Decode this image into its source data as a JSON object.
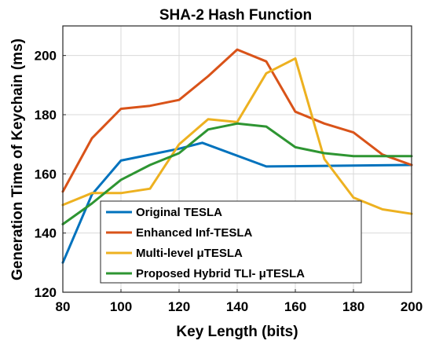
{
  "chart_data": {
    "type": "line",
    "title": "SHA-2 Hash Function",
    "xlabel": "Key Length (bits)",
    "ylabel": "Generation Time of Keychain (ms)",
    "xlim": [
      80,
      200
    ],
    "ylim": [
      120,
      210
    ],
    "xticks": [
      80,
      100,
      120,
      140,
      160,
      180,
      200
    ],
    "yticks": [
      120,
      140,
      160,
      180,
      200
    ],
    "grid": true,
    "legend_position": "bottom-left",
    "series": [
      {
        "name": "Original TESLA",
        "color": "#0072BD",
        "points": [
          [
            80,
            130
          ],
          [
            90,
            153
          ],
          [
            100,
            164.5
          ],
          [
            120,
            168.5
          ],
          [
            128,
            170.5
          ],
          [
            150,
            162.5
          ],
          [
            200,
            163
          ]
        ]
      },
      {
        "name": "Enhanced Inf-TESLA",
        "color": "#D95319",
        "points": [
          [
            80,
            154
          ],
          [
            90,
            172
          ],
          [
            100,
            182
          ],
          [
            110,
            183
          ],
          [
            120,
            185
          ],
          [
            130,
            193
          ],
          [
            140,
            202
          ],
          [
            150,
            198
          ],
          [
            160,
            181
          ],
          [
            170,
            177
          ],
          [
            180,
            174
          ],
          [
            190,
            166.5
          ],
          [
            200,
            163
          ]
        ]
      },
      {
        "name": "Multi-level μTESLA",
        "color": "#EDB120",
        "points": [
          [
            80,
            149.5
          ],
          [
            90,
            153.5
          ],
          [
            100,
            153.5
          ],
          [
            110,
            155
          ],
          [
            120,
            170
          ],
          [
            130,
            178.5
          ],
          [
            140,
            177.5
          ],
          [
            150,
            194
          ],
          [
            160,
            199
          ],
          [
            170,
            165
          ],
          [
            180,
            152
          ],
          [
            190,
            148
          ],
          [
            200,
            146.5
          ]
        ]
      },
      {
        "name": "Proposed Hybrid TLI- μTESLA",
        "color": "#2E9532",
        "points": [
          [
            80,
            143
          ],
          [
            90,
            150
          ],
          [
            100,
            158
          ],
          [
            110,
            163
          ],
          [
            120,
            167
          ],
          [
            130,
            175
          ],
          [
            140,
            177
          ],
          [
            150,
            176
          ],
          [
            160,
            169
          ],
          [
            170,
            167
          ],
          [
            180,
            166
          ],
          [
            190,
            166
          ],
          [
            200,
            166
          ]
        ]
      }
    ]
  }
}
